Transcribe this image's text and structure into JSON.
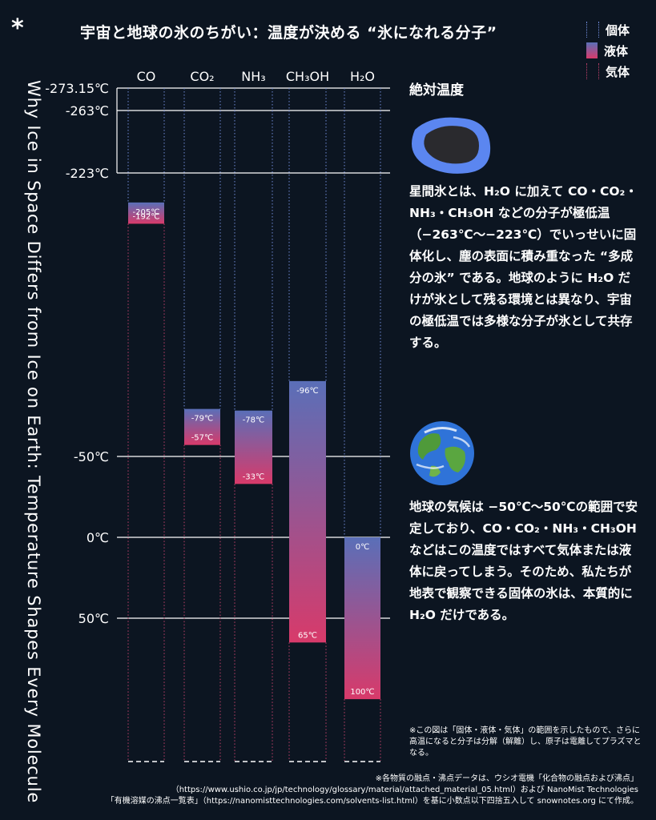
{
  "title": "宇宙と地球の氷のちがい：温度が決める “氷になれる分子”",
  "star": "*",
  "vertical_title": "Why Ice in Space Differs from Ice on Earth: Temperature Shapes Every Molecule",
  "legend": [
    {
      "label": "個体",
      "kind": "solid"
    },
    {
      "label": "液体",
      "kind": "liquid"
    },
    {
      "label": "気体",
      "kind": "gas"
    }
  ],
  "section_head": "絶対温度",
  "paragraph_space": "星間氷とは、H₂O に加えて CO・CO₂・NH₃・CH₃OH などの分子が極低温（−263℃〜−223℃）でいっせいに固体化し、塵の表面に積み重なった “多成分の氷” である。地球のように H₂O だけが氷として残る環境とは異なり、宇宙の極低温では多様な分子が氷として共存する。",
  "paragraph_earth": "地球の気候は −50℃〜50℃の範囲で安定しており、CO・CO₂・NH₃・CH₃OH などはこの温度ではすべて気体または液体に戻ってしまう。そのため、私たちが地表で観察できる固体の氷は、本質的に H₂O だけである。",
  "note": "※この図は「固体・液体・気体」の範囲を示したもので、さらに高温になると分子は分解（解離）し、原子は電離してプラズマとなる。",
  "footer_lines": [
    "※各物質の融点・沸点データは、ウシオ電機「化合物の融点および沸点」",
    "（https://www.ushio.co.jp/jp/technology/glossary/material/attached_material_05.html）および NanoMist Technologies",
    "「有機溶媒の沸点一覧表」（https://nanomisttechnologies.com/solvents-list.html）を基に小数点以下四捨五入して snownotes.org にて作成。"
  ],
  "colors": {
    "background": "#0c1521",
    "solid": "#6f8ad8",
    "liquid_top": "#5a6fb8",
    "liquid_bottom": "#d83a6a",
    "gas": "#c0406a",
    "gridline": "#ffffff"
  },
  "chart_data": {
    "type": "bar",
    "series_kind": "floating range bars (melting point to boiling point)",
    "unit": "℃",
    "categories": [
      "CO",
      "CO₂",
      "NH₃",
      "CH₃OH",
      "H₂O"
    ],
    "melting_point": [
      -205,
      -79,
      -78,
      -96,
      0
    ],
    "boiling_point": [
      -192,
      -57,
      -33,
      65,
      100
    ],
    "melting_labels": [
      "-205℃",
      "-79℃",
      "-78℃",
      "-96℃",
      "0℃"
    ],
    "boiling_labels": [
      "-192℃",
      "-57℃",
      "-33℃",
      "65℃",
      "100℃"
    ],
    "reference_lines": [
      -273.15,
      -263,
      -223,
      -50,
      0,
      50
    ],
    "reference_labels": [
      "-273.15℃",
      "-263℃",
      "-223℃",
      "-50℃",
      "0℃",
      "50℃"
    ],
    "ylim": [
      -273.15,
      140
    ],
    "orientation": "temperature increases downward",
    "grid": true
  }
}
